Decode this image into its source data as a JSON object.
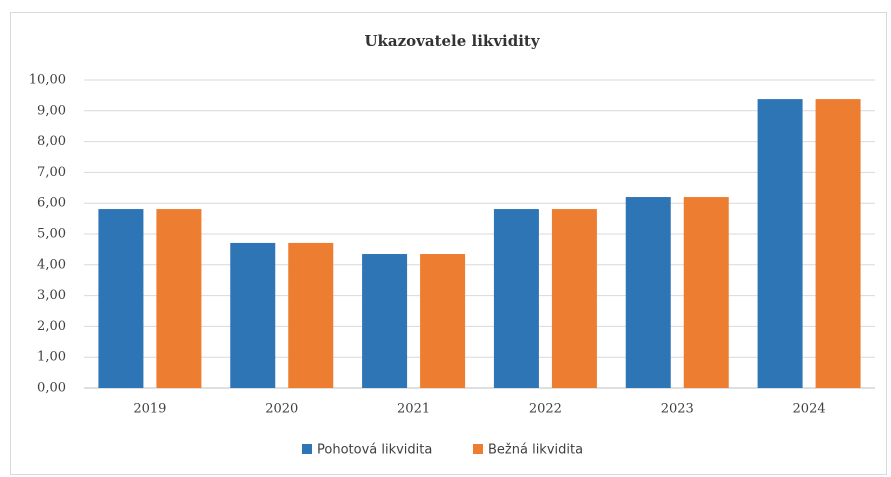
{
  "chart_data": {
    "type": "bar",
    "title": "Ukazovatele likvidity",
    "categories": [
      "2019",
      "2020",
      "2021",
      "2022",
      "2023",
      "2024"
    ],
    "series": [
      {
        "name": "Pohotová likvidita",
        "color": "#2e75b6",
        "values": [
          5.81,
          4.71,
          4.35,
          5.81,
          6.2,
          9.38
        ]
      },
      {
        "name": "Bežná likvidita",
        "color": "#ed7d31",
        "values": [
          5.81,
          4.71,
          4.35,
          5.81,
          6.2,
          9.38
        ]
      }
    ],
    "ylim": [
      0,
      10
    ],
    "yticks": [
      {
        "value": 0,
        "label": "0,00"
      },
      {
        "value": 1,
        "label": "1,00"
      },
      {
        "value": 2,
        "label": "2,00"
      },
      {
        "value": 3,
        "label": "3,00"
      },
      {
        "value": 4,
        "label": "4,00"
      },
      {
        "value": 5,
        "label": "5,00"
      },
      {
        "value": 6,
        "label": "6,00"
      },
      {
        "value": 7,
        "label": "7,00"
      },
      {
        "value": 8,
        "label": "8,00"
      },
      {
        "value": 9,
        "label": "9,00"
      },
      {
        "value": 10,
        "label": "10,00"
      }
    ],
    "grid": true,
    "legend": "bottom"
  }
}
